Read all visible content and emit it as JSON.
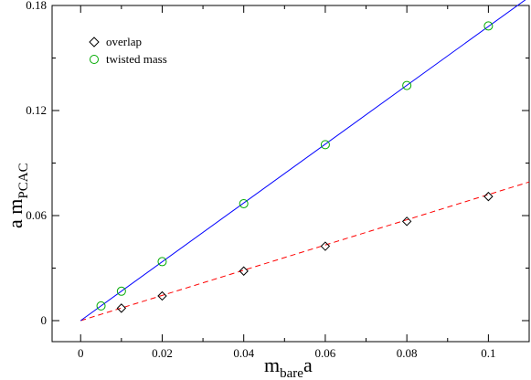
{
  "chart_data": {
    "type": "scatter",
    "xlabel": {
      "main": "m",
      "sub": "bare",
      "suffix": "a"
    },
    "ylabel": {
      "prefix": "a m",
      "sub": "PCAC"
    },
    "xlim": [
      -0.007,
      0.11
    ],
    "ylim": [
      -0.012,
      0.18
    ],
    "x_ticks": [
      0,
      0.02,
      0.04,
      0.06,
      0.08,
      0.1
    ],
    "x_tick_labels": [
      "0",
      "0.02",
      "0.04",
      "0.06",
      "0.08",
      "0.1"
    ],
    "y_ticks": [
      0,
      0.06,
      0.12,
      0.18
    ],
    "y_tick_labels": [
      "0",
      "0.06",
      "0.12",
      "0.18"
    ],
    "grid": false,
    "legend_position": "top-left",
    "series": [
      {
        "name": "overlap",
        "marker": "diamond",
        "color": "#000000",
        "x": [
          0.01,
          0.02,
          0.04,
          0.06,
          0.08,
          0.1
        ],
        "y": [
          0.0071,
          0.0141,
          0.0283,
          0.0425,
          0.0567,
          0.0709
        ]
      },
      {
        "name": "twisted mass",
        "marker": "circle",
        "color": "#00aa00",
        "x": [
          0.005,
          0.01,
          0.02,
          0.04,
          0.06,
          0.08,
          0.1
        ],
        "y": [
          0.0084,
          0.0168,
          0.0337,
          0.0668,
          0.1005,
          0.1343,
          0.1683
        ]
      }
    ],
    "fits": [
      {
        "series": "overlap",
        "style": "dashed",
        "color": "#ff0000",
        "x": [
          0,
          0.11
        ],
        "y": [
          0,
          0.0792
        ]
      },
      {
        "series": "twisted mass",
        "style": "solid",
        "color": "#0000ff",
        "x": [
          0,
          0.11
        ],
        "y": [
          0,
          0.1848
        ]
      }
    ]
  }
}
